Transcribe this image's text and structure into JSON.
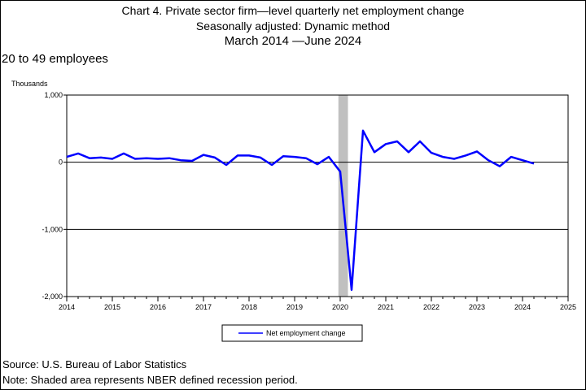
{
  "chart_data": {
    "type": "line",
    "title": "Chart 4. Private sector firm—level quarterly net employment change",
    "subtitle_line2": "Seasonally adjusted: Dynamic method",
    "subtitle_line3": "March 2014  —June 2024",
    "panel_label": "20 to 49 employees",
    "ylabel": "Thousands",
    "xlabel": "",
    "xlim": [
      2014,
      2025
    ],
    "ylim": [
      -2000,
      1000
    ],
    "y_ticks": [
      1000,
      0,
      -1000,
      -2000
    ],
    "y_tick_labels": [
      "1,000",
      "0",
      "-1,000",
      "-2,000"
    ],
    "x_ticks": [
      2014,
      2015,
      2016,
      2017,
      2018,
      2019,
      2020,
      2021,
      2022,
      2023,
      2024,
      2025
    ],
    "x_tick_labels": [
      "2014",
      "2015",
      "2016",
      "2017",
      "2018",
      "2019",
      "2020",
      "2021",
      "2022",
      "2023",
      "2024",
      "2025"
    ],
    "grid": "horizontal",
    "legend_position": "bottom-center",
    "recession_shading": {
      "start": 2019.96,
      "end": 2020.17,
      "color": "#c0c0c0"
    },
    "series": [
      {
        "name": "Net employment change",
        "color": "#0000ff",
        "x": [
          2014.0,
          2014.25,
          2014.5,
          2014.75,
          2015.0,
          2015.25,
          2015.5,
          2015.75,
          2016.0,
          2016.25,
          2016.5,
          2016.75,
          2017.0,
          2017.25,
          2017.5,
          2017.75,
          2018.0,
          2018.25,
          2018.5,
          2018.75,
          2019.0,
          2019.25,
          2019.5,
          2019.75,
          2020.0,
          2020.25,
          2020.5,
          2020.75,
          2021.0,
          2021.25,
          2021.5,
          2021.75,
          2022.0,
          2022.25,
          2022.5,
          2022.75,
          2023.0,
          2023.25,
          2023.5,
          2023.75,
          2024.0,
          2024.25
        ],
        "values": [
          80,
          130,
          60,
          70,
          50,
          130,
          50,
          60,
          50,
          60,
          30,
          20,
          110,
          70,
          -40,
          100,
          100,
          70,
          -40,
          90,
          80,
          60,
          -30,
          80,
          -140,
          -1900,
          470,
          150,
          270,
          310,
          150,
          310,
          140,
          80,
          50,
          100,
          160,
          30,
          -60,
          80,
          30,
          -20
        ]
      }
    ]
  },
  "footer": {
    "source": "Source: U.S. Bureau of Labor Statistics",
    "note": "Note: Shaded area represents NBER defined recession period."
  }
}
